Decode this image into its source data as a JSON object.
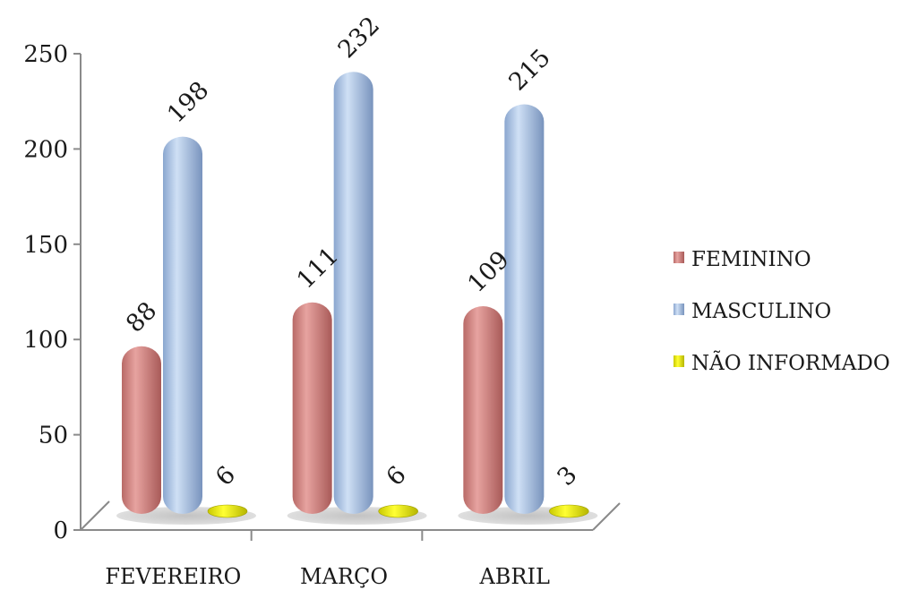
{
  "chart_data": {
    "type": "bar",
    "categories": [
      "FEVEREIRO",
      "MARÇO",
      "ABRIL"
    ],
    "series": [
      {
        "name": "FEMININO",
        "values": [
          88,
          111,
          109
        ],
        "color": "#d98a87"
      },
      {
        "name": "MASCULINO",
        "values": [
          198,
          232,
          215
        ],
        "color": "#a9c3e6"
      },
      {
        "name": "NÃO INFORMADO",
        "values": [
          6,
          6,
          3
        ],
        "color": "#e6e600"
      }
    ],
    "yticks": [
      0,
      50,
      100,
      150,
      200,
      250
    ],
    "ylim": [
      0,
      250
    ],
    "data_labels": [
      [
        "88",
        "198",
        "6"
      ],
      [
        "111",
        "232",
        "6"
      ],
      [
        "109",
        "215",
        "3"
      ]
    ],
    "legend_position": "right",
    "grid": false,
    "style": "3d-cylinder"
  }
}
